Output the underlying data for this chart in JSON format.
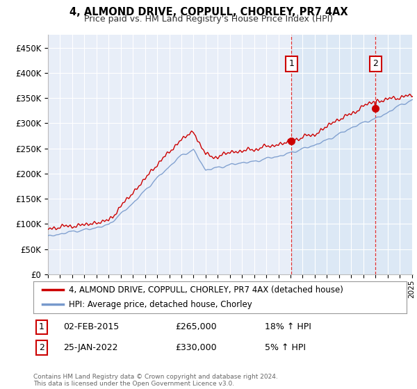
{
  "title": "4, ALMOND DRIVE, COPPULL, CHORLEY, PR7 4AX",
  "subtitle": "Price paid vs. HM Land Registry's House Price Index (HPI)",
  "background_color": "#ffffff",
  "plot_bg_color_left": "#e8eef8",
  "plot_bg_color_right": "#dce8f5",
  "grid_color": "#ffffff",
  "red_color": "#cc0000",
  "blue_color": "#7799cc",
  "legend_line1": "4, ALMOND DRIVE, COPPULL, CHORLEY, PR7 4AX (detached house)",
  "legend_line2": "HPI: Average price, detached house, Chorley",
  "footer": "Contains HM Land Registry data © Crown copyright and database right 2024.\nThis data is licensed under the Open Government Licence v3.0.",
  "ylim": [
    0,
    475000
  ],
  "yticks": [
    0,
    50000,
    100000,
    150000,
    200000,
    250000,
    300000,
    350000,
    400000,
    450000
  ],
  "ytick_labels": [
    "£0",
    "£50K",
    "£100K",
    "£150K",
    "£200K",
    "£250K",
    "£300K",
    "£350K",
    "£400K",
    "£450K"
  ],
  "start_year": 1995,
  "end_year": 2025,
  "sale1_year": 2015,
  "sale1_month": 2,
  "sale1_price": 265000,
  "sale2_year": 2022,
  "sale2_month": 1,
  "sale2_price": 330000
}
